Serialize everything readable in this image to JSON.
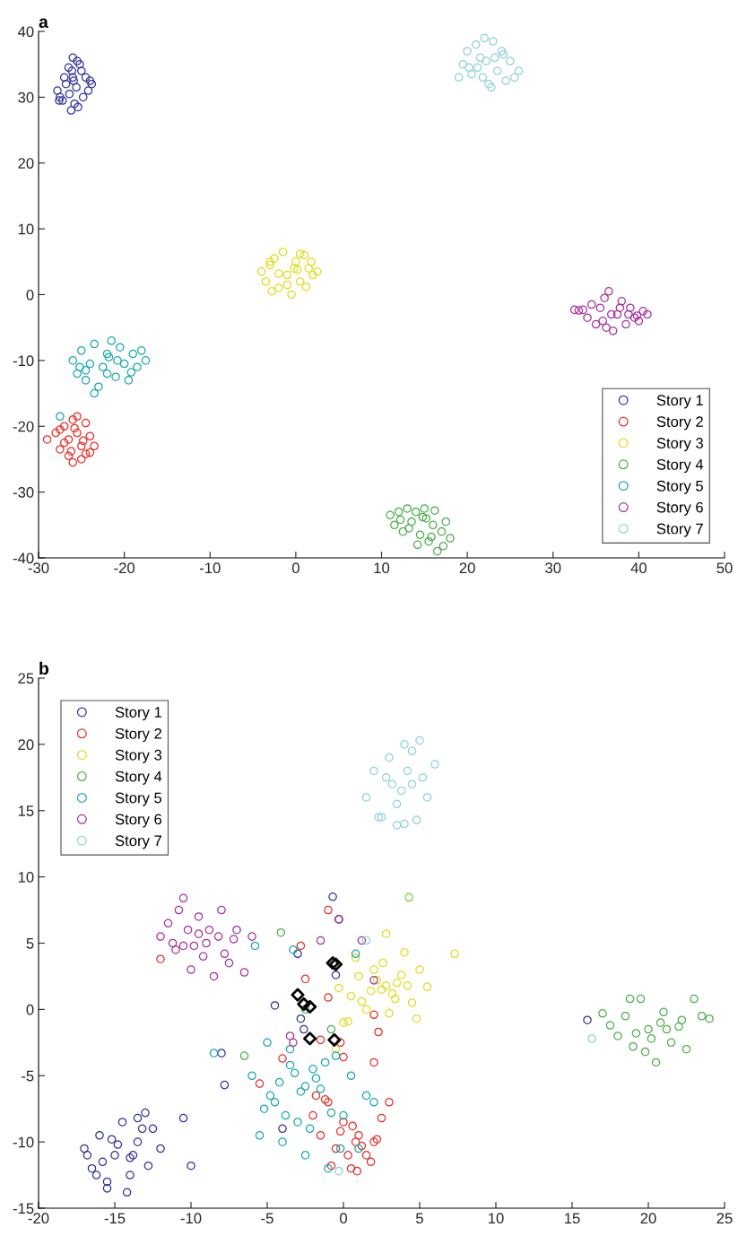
{
  "chart_data": [
    {
      "type": "scatter",
      "title": "a",
      "xlim": [
        -30,
        50
      ],
      "ylim": [
        -40,
        40
      ],
      "xticks": [
        -30,
        -20,
        -10,
        0,
        10,
        20,
        30,
        40,
        50
      ],
      "yticks": [
        -40,
        -30,
        -20,
        -10,
        0,
        10,
        20,
        30,
        40
      ],
      "grid": false,
      "legend": "bottom right",
      "marker": "circle",
      "series": [
        {
          "name": "Story 1",
          "color": "#33349a",
          "x": [
            -27.8,
            -27.5,
            -27,
            -26.5,
            -26,
            -25.5,
            -25,
            -24.5,
            -24,
            -23.8,
            -26.2,
            -25.8,
            -26.4,
            -25.6,
            -27.2,
            -24.8,
            -26,
            -25.2,
            -26.8,
            -25.4,
            -26.1,
            -24.2,
            -27.6,
            -25.9
          ],
          "values": [
            31,
            30,
            33,
            34.5,
            36,
            35.5,
            34,
            33,
            32.5,
            32,
            28,
            29,
            30.5,
            31.5,
            29.5,
            30,
            33,
            35,
            32,
            28.5,
            34,
            31,
            29.5,
            32.5
          ]
        },
        {
          "name": "Story 2",
          "color": "#e8302a",
          "x": [
            -29,
            -28,
            -27.5,
            -27,
            -26.5,
            -26,
            -25.5,
            -25,
            -24.5,
            -24,
            -23.5,
            -26.5,
            -25.5,
            -25,
            -26,
            -27,
            -24.5,
            -25.8,
            -24,
            -27.5,
            -26.2,
            -24.8
          ],
          "values": [
            -22,
            -21,
            -23.5,
            -20,
            -24.5,
            -19,
            -18.5,
            -25,
            -19.5,
            -21.5,
            -23,
            -22,
            -21,
            -23,
            -25.5,
            -22.5,
            -24.2,
            -20.3,
            -24,
            -20.5,
            -23.8,
            -22.2
          ]
        },
        {
          "name": "Story 3",
          "color": "#e2dc22",
          "x": [
            -4,
            -3.5,
            -3,
            -2.5,
            -2,
            -1.5,
            -1,
            -0.5,
            0,
            0.5,
            1,
            1.5,
            2,
            2.5,
            -3,
            -1,
            0.5,
            -2,
            1.2,
            -0.2,
            1.8,
            -2.8,
            0.2
          ],
          "values": [
            3.5,
            2,
            4.5,
            5.5,
            1,
            6.5,
            3,
            0,
            5,
            2,
            6,
            4,
            3,
            3.5,
            5,
            1.5,
            6.2,
            3.2,
            1.2,
            4,
            5,
            0.5,
            3.8
          ]
        },
        {
          "name": "Story 4",
          "color": "#4cae4c",
          "x": [
            11,
            11.5,
            12,
            12.5,
            13,
            13.5,
            14,
            14.5,
            15,
            15.5,
            16,
            16.5,
            17,
            17.5,
            18,
            14.2,
            15.2,
            16.2,
            13.2,
            17.2,
            15.8,
            14.8,
            12.2
          ],
          "values": [
            -33.5,
            -35,
            -33,
            -36,
            -32.5,
            -34.5,
            -33,
            -36.5,
            -32.5,
            -37.5,
            -35,
            -39,
            -36,
            -34.5,
            -37,
            -38,
            -34,
            -32.8,
            -35.5,
            -38.2,
            -36.8,
            -33.8,
            -34.2
          ]
        },
        {
          "name": "Story 5",
          "color": "#1aa9b0",
          "x": [
            -26,
            -25.5,
            -25,
            -24.5,
            -24,
            -23.5,
            -23,
            -22.5,
            -22,
            -21.5,
            -21,
            -20.5,
            -20,
            -19.5,
            -19,
            -18.5,
            -18,
            -17.5,
            -23.5,
            -22,
            -20.8,
            -24.5,
            -21.8,
            -19.2,
            -25.2,
            -27.5
          ],
          "values": [
            -10,
            -12,
            -8.5,
            -13,
            -10.5,
            -7.5,
            -14,
            -11,
            -9,
            -7,
            -12.5,
            -8,
            -10.5,
            -13,
            -9,
            -11,
            -8.5,
            -10,
            -15,
            -12,
            -10,
            -11.5,
            -9.5,
            -11.8,
            -11,
            -18.5
          ]
        },
        {
          "name": "Story 6",
          "color": "#a8329e",
          "x": [
            32.5,
            33,
            33.5,
            34,
            34.5,
            35,
            35.5,
            36,
            36.5,
            37,
            37.5,
            38,
            38.5,
            39,
            39.5,
            40,
            40.5,
            41,
            36.8,
            35.8,
            37.8,
            38.8,
            36.2,
            39.8
          ],
          "values": [
            -2.3,
            -2.4,
            -2.3,
            -3.5,
            -1.5,
            -4.5,
            -2,
            -0.5,
            0.5,
            -5.5,
            -3,
            -1,
            -4.5,
            -2,
            -3.5,
            -4,
            -2.5,
            -3,
            -3,
            -4,
            -2,
            -3,
            -5,
            -3.2
          ]
        },
        {
          "name": "Story 7",
          "color": "#8fd3d6",
          "x": [
            19,
            19.5,
            20,
            20.5,
            21,
            21.5,
            22,
            22.5,
            23,
            23.5,
            24,
            24.5,
            25,
            25.5,
            26,
            22.2,
            23.2,
            21.2,
            24.2,
            20.2,
            22.8,
            21.8
          ],
          "values": [
            33,
            35,
            37,
            33.5,
            38,
            36,
            39,
            32,
            38.5,
            34,
            37,
            32.5,
            35.5,
            33,
            34,
            35.5,
            36,
            34.5,
            36.5,
            34.5,
            31.5,
            33
          ]
        }
      ]
    },
    {
      "type": "scatter",
      "title": "b",
      "xlim": [
        -20,
        25
      ],
      "ylim": [
        -15,
        25
      ],
      "xticks": [
        -20,
        -15,
        -10,
        -5,
        0,
        5,
        10,
        15,
        20,
        25
      ],
      "yticks": [
        -15,
        -10,
        -5,
        0,
        5,
        10,
        15,
        20,
        25
      ],
      "grid": false,
      "legend": "top left",
      "marker": "circle",
      "series": [
        {
          "name": "Story 1",
          "color": "#33349a",
          "x": [
            -17,
            -16.5,
            -16,
            -15.5,
            -15,
            -14.5,
            -14,
            -13.5,
            -13,
            -12.5,
            -12,
            -15.8,
            -14.8,
            -13.8,
            -16.2,
            -15.2,
            -14.2,
            -13.2,
            -12.8,
            -15.5,
            -14,
            -16.8,
            -13.5,
            -10.5,
            -10,
            -7.8,
            -8,
            -4.5,
            -3,
            -0.7,
            -0.3,
            -0.5,
            -2.8,
            -2.6,
            -4,
            16
          ],
          "values": [
            -10.5,
            -12,
            -9.5,
            -13,
            -11,
            -8.5,
            -12.5,
            -10,
            -7.8,
            -9,
            -10.5,
            -11.5,
            -10.2,
            -11,
            -12.5,
            -9.8,
            -13.8,
            -9,
            -11.8,
            -13.5,
            -11.2,
            -11,
            -8.2,
            -8.2,
            -11.8,
            -5.7,
            -3.3,
            0.3,
            4.2,
            8.5,
            6.8,
            2.6,
            -0.7,
            -1.5,
            -9,
            -0.8
          ]
        },
        {
          "name": "Story 2",
          "color": "#e8302a",
          "x": [
            -2,
            -1.5,
            -1,
            -0.5,
            0,
            0.5,
            1,
            1.5,
            2,
            2.5,
            3,
            -1.2,
            -0.2,
            0.8,
            1.8,
            0.3,
            -0.8,
            1.2,
            0.6,
            -1.8,
            2.2,
            0.9,
            -12,
            -1,
            -4,
            -5.5,
            -2.5,
            -1,
            2,
            2.3,
            2,
            -2.8,
            0,
            -1.5,
            -0.2
          ],
          "values": [
            -8,
            -9.5,
            -7,
            -10.5,
            -8.5,
            -12,
            -9.5,
            -11,
            -10,
            -8.2,
            -7,
            -6.8,
            -9.2,
            -10,
            -11.5,
            -11,
            -11.8,
            -10.3,
            -8.8,
            -6.5,
            -9.8,
            -12.2,
            3.8,
            7.5,
            -3.7,
            -5.6,
            2.3,
            0.9,
            -0.4,
            -1.7,
            -4,
            4.8,
            -3.6,
            -2.3,
            -2.5
          ]
        },
        {
          "name": "Story 3",
          "color": "#e2dc22",
          "x": [
            0.5,
            1,
            1.5,
            2,
            2.5,
            3,
            3.5,
            4,
            4.5,
            5,
            5.5,
            2.8,
            3.2,
            2.2,
            3.8,
            1.8,
            4.2,
            2.6,
            3.4,
            4.8,
            1.2,
            7.3,
            4.3,
            2.8,
            -0.3,
            0.8,
            -0.5,
            0,
            0.3
          ],
          "values": [
            1,
            2.5,
            0,
            3,
            1.5,
            -0.3,
            2,
            4.3,
            0.5,
            3,
            1.7,
            1.8,
            1.2,
            2.2,
            2.6,
            1.4,
            1.8,
            3.5,
            0.8,
            -0.7,
            0.6,
            4.2,
            8.4,
            5.7,
            1.6,
            3.9,
            -3,
            -1,
            -0.9
          ]
        },
        {
          "name": "Story 4",
          "color": "#4cae4c",
          "x": [
            17,
            17.5,
            18,
            18.5,
            19,
            19.5,
            20,
            20.5,
            21,
            21.5,
            22,
            22.5,
            23,
            23.5,
            24,
            19.2,
            20.2,
            21.2,
            18.8,
            22.2,
            20.8,
            19.8,
            -4.1,
            -2.5,
            -6.5,
            -0.8
          ],
          "values": [
            -0.3,
            -1.2,
            -2,
            -0.5,
            -2.8,
            0.8,
            -1.5,
            -4,
            -0.2,
            -2.5,
            -1.3,
            -3,
            0.8,
            -0.5,
            -0.7,
            -1.8,
            -2.2,
            -1.5,
            0.8,
            -0.8,
            -1,
            -3.2,
            5.8,
            0,
            -3.5,
            -1.5
          ]
        },
        {
          "name": "Story 5",
          "color": "#1aa9b0",
          "x": [
            -6,
            -5.5,
            -5,
            -4.5,
            -4,
            -3.5,
            -3,
            -2.5,
            -2,
            -1.5,
            -1,
            -0.5,
            0,
            0.5,
            1,
            1.5,
            2,
            -4.2,
            -3.2,
            -2.8,
            -3.8,
            -1.2,
            -2.2,
            -4.8,
            -0.2,
            -5.2,
            -3.5,
            -1.8,
            -2.5,
            -0.8,
            -5.8,
            -3.3,
            0.8,
            -8.5
          ],
          "values": [
            -5,
            -9.5,
            -2.5,
            -7,
            -10,
            -3,
            -8.5,
            -11,
            -4.5,
            -6,
            -12,
            -3.5,
            -8,
            -5,
            -10.5,
            -6.5,
            -7,
            -5.5,
            -4.8,
            -6.2,
            -8,
            -4,
            -9,
            -6.5,
            -10.5,
            -7.5,
            -4.2,
            -5.2,
            -5.8,
            -7.8,
            4.8,
            4.5,
            4.2,
            -3.3
          ]
        },
        {
          "name": "Story 6",
          "color": "#a8329e",
          "x": [
            -12,
            -11.5,
            -11,
            -10.5,
            -10,
            -9.5,
            -9,
            -8.5,
            -8,
            -7.5,
            -7,
            -6.5,
            -6,
            -11.2,
            -10.2,
            -9.2,
            -8.2,
            -10.8,
            -9.8,
            -8.8,
            -7.8,
            -10.5,
            -9.5,
            -7.2,
            -1.5,
            -3.5,
            -3.3,
            1.2,
            2,
            -0.3
          ],
          "values": [
            5.5,
            6.5,
            4.5,
            8.4,
            3,
            7,
            5,
            2.5,
            7.5,
            3.5,
            6,
            2.8,
            5.5,
            5,
            6,
            4,
            5.5,
            7.5,
            4.8,
            6,
            4.2,
            4.8,
            5.7,
            5.3,
            5.2,
            -2,
            -2.5,
            5.2,
            2.2,
            6.8
          ]
        },
        {
          "name": "Story 7",
          "color": "#8fd3d6",
          "x": [
            1.5,
            2,
            2.5,
            3,
            3.5,
            4,
            4.5,
            5,
            5.5,
            6,
            3.2,
            3.8,
            4.2,
            2.8,
            4.8,
            3.5,
            4.5,
            2.3,
            5.2,
            4,
            4.3,
            16.3,
            1.5,
            -0.3
          ],
          "values": [
            16,
            18,
            14.5,
            19,
            15.5,
            20,
            17,
            20.3,
            16,
            18.5,
            17,
            16.5,
            18,
            17.5,
            14.3,
            13.9,
            19.5,
            14.5,
            17.5,
            14,
            8.5,
            -2.2,
            5.2,
            -12.2
          ]
        },
        {
          "type": "scatter",
          "marker": "diamond",
          "color": "#000000",
          "x": [
            -0.7,
            -0.5,
            -3,
            -2.6,
            -2.2,
            -2.2,
            -0.6
          ],
          "values": [
            3.5,
            3.4,
            1.1,
            0.4,
            0.2,
            -2.2,
            -2.3
          ]
        }
      ]
    }
  ]
}
